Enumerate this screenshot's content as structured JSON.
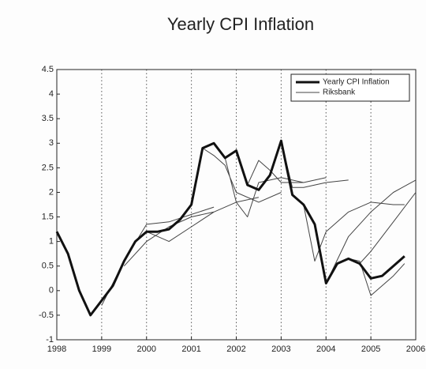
{
  "chart_data": {
    "type": "line",
    "title": "Yearly CPI Inflation",
    "xlim": [
      1998,
      2006
    ],
    "xticks": [
      1998,
      1999,
      2000,
      2001,
      2002,
      2003,
      2004,
      2005,
      2006
    ],
    "ylim": [
      -1,
      4.5
    ],
    "yticks": [
      -1,
      -0.5,
      0,
      0.5,
      1,
      1.5,
      2,
      2.5,
      3,
      3.5,
      4,
      4.5
    ],
    "grid": "x",
    "legend": "upper right",
    "series": [
      {
        "name": "Yearly CPI Inflation",
        "color": "#111111",
        "x": [
          1998,
          1998.25,
          1998.5,
          1998.75,
          1999,
          1999.25,
          1999.5,
          1999.75,
          2000,
          2000.25,
          2000.5,
          2000.75,
          2001,
          2001.25,
          2001.5,
          2001.75,
          2002,
          2002.25,
          2002.5,
          2002.75,
          2003,
          2003.25,
          2003.5,
          2003.75,
          2004,
          2004.25,
          2004.5,
          2004.75,
          2005,
          2005.25,
          2005.5,
          2005.75
        ],
        "values": [
          1.2,
          0.75,
          0,
          -0.5,
          -0.2,
          0.1,
          0.6,
          1.0,
          1.2,
          1.2,
          1.25,
          1.45,
          1.75,
          2.9,
          3.0,
          2.7,
          2.85,
          2.15,
          2.05,
          2.35,
          3.05,
          1.95,
          1.75,
          1.35,
          0.15,
          0.55,
          0.65,
          0.55,
          0.25,
          0.3,
          0.5,
          0.7
        ]
      },
      {
        "name": "Riksbank",
        "color": "#444444",
        "x": [
          1999,
          1999.5,
          2000,
          2000.5,
          2001,
          2001.5,
          null,
          1999.5,
          2000,
          2000.5,
          2001,
          2001.5,
          2002,
          null,
          2000,
          2000.5,
          2001,
          2001.5,
          2002,
          2002.5,
          null,
          2001.25,
          2001.5,
          2001.75,
          2002,
          2002.5,
          2003,
          null,
          2001.75,
          2002,
          2002.25,
          2002.5,
          2003,
          2003.5,
          null,
          2002.25,
          2002.5,
          2002.75,
          2003,
          2003.5,
          2004,
          null,
          2003,
          2003.25,
          2003.5,
          2004,
          2004.5,
          null,
          2003.5,
          2003.75,
          2004,
          2004.5,
          2005,
          2005.5,
          2005.75,
          null,
          2004,
          2004.5,
          2005,
          2005.5,
          2006,
          null,
          2004.5,
          2004.75,
          2005,
          2005.5,
          2005.75,
          null,
          2004.75,
          2005,
          2005.5,
          2006
        ],
        "values": [
          -0.3,
          0.6,
          1.35,
          1.4,
          1.55,
          1.7,
          null,
          0.5,
          1.0,
          1.3,
          1.5,
          1.6,
          1.8,
          null,
          1.2,
          1.0,
          1.3,
          1.6,
          1.8,
          1.9,
          null,
          2.9,
          2.75,
          2.55,
          2.0,
          1.8,
          2.0,
          null,
          2.7,
          1.8,
          1.5,
          2.2,
          2.3,
          2.2,
          null,
          2.15,
          2.65,
          2.45,
          2.2,
          2.2,
          2.3,
          null,
          3.05,
          2.1,
          2.1,
          2.2,
          2.25,
          null,
          1.75,
          0.6,
          1.2,
          1.6,
          1.8,
          1.75,
          1.75,
          null,
          0.15,
          1.1,
          1.6,
          2.0,
          2.25,
          null,
          0.65,
          0.6,
          -0.1,
          0.3,
          0.55,
          null,
          0.55,
          0.8,
          1.4,
          2.0
        ]
      }
    ]
  }
}
